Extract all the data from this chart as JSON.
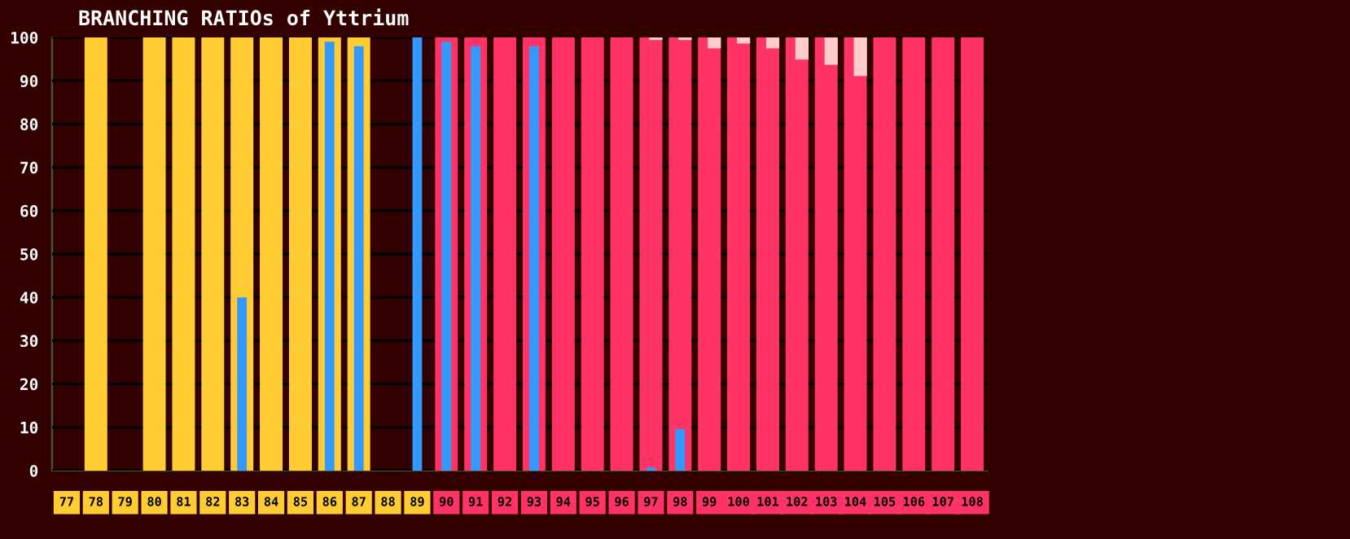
{
  "chart_data": {
    "type": "bar",
    "title": "BRANCHING RATIOs of Yttrium",
    "categories": [
      "77",
      "78",
      "79",
      "80",
      "81",
      "82",
      "83",
      "84",
      "85",
      "86",
      "87",
      "88",
      "89",
      "90",
      "91",
      "92",
      "93",
      "94",
      "95",
      "96",
      "97",
      "98",
      "99",
      "100",
      "101",
      "102",
      "103",
      "104",
      "105",
      "106",
      "107",
      "108"
    ],
    "series": [
      {
        "color": "#ffcc33",
        "values": [
          null,
          100,
          null,
          100,
          100,
          100,
          100,
          100,
          100,
          100,
          100,
          null,
          null,
          null,
          null,
          null,
          null,
          null,
          null,
          null,
          null,
          null,
          null,
          null,
          null,
          null,
          null,
          null,
          null,
          null,
          null,
          null
        ]
      },
      {
        "color": "#ff3366",
        "values": [
          null,
          null,
          null,
          null,
          null,
          null,
          null,
          null,
          null,
          null,
          null,
          null,
          null,
          100,
          100,
          100,
          100,
          100,
          100,
          100,
          100,
          100,
          100,
          100,
          100,
          100,
          100,
          100,
          100,
          100,
          100,
          100
        ]
      },
      {
        "color": "#3399ff",
        "values": [
          null,
          null,
          null,
          null,
          null,
          null,
          40,
          null,
          null,
          99,
          98,
          null,
          100,
          99,
          98,
          null,
          98,
          null,
          null,
          null,
          0.7,
          9.6,
          null,
          null,
          null,
          null,
          null,
          null,
          null,
          null,
          null,
          null
        ]
      },
      {
        "color": "#ffcccc",
        "values": [
          null,
          null,
          null,
          null,
          null,
          null,
          null,
          null,
          null,
          null,
          null,
          null,
          null,
          null,
          null,
          null,
          null,
          null,
          null,
          null,
          0.6,
          0.6,
          2.5,
          1.4,
          2.5,
          5.1,
          6.3,
          8.9,
          null,
          null,
          null,
          null
        ],
        "base": [
          null,
          null,
          null,
          null,
          null,
          null,
          null,
          null,
          null,
          null,
          null,
          null,
          null,
          null,
          null,
          null,
          null,
          null,
          null,
          null,
          99.4,
          99.4,
          97.5,
          98.6,
          97.5,
          94.9,
          93.7,
          91.1,
          null,
          null,
          null,
          null
        ]
      }
    ],
    "ylim": [
      0,
      100
    ],
    "yticks": [
      0,
      10,
      20,
      30,
      40,
      50,
      60,
      70,
      80,
      90,
      100
    ],
    "grid": "y"
  }
}
